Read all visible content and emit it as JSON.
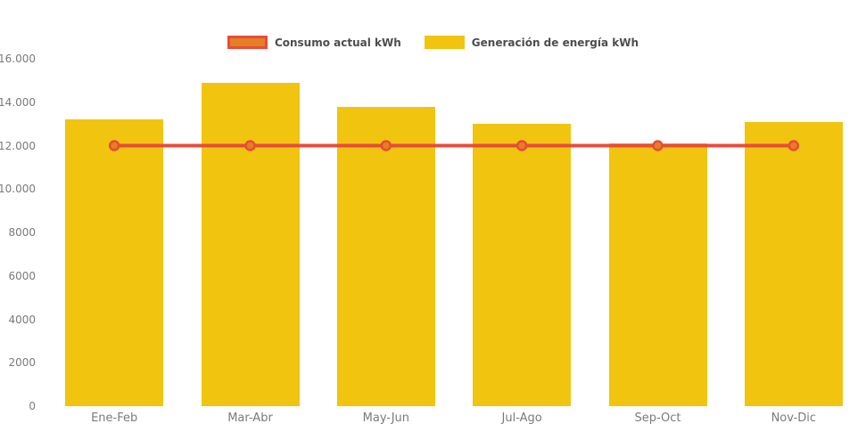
{
  "legend": {
    "items": [
      {
        "label": "Consumo actual kWh",
        "swatch_fill": "#e67e22",
        "swatch_border": "#e74c3c"
      },
      {
        "label": "Generación de energía kWh",
        "swatch_fill": "#f1c40f",
        "swatch_border": "#f1c40f"
      }
    ]
  },
  "chart_data": {
    "type": "bar",
    "categories": [
      "Ene-Feb",
      "Mar-Abr",
      "May-Jun",
      "Jul-Ago",
      "Sep-Oct",
      "Nov-Dic"
    ],
    "series": [
      {
        "name": "Consumo actual kWh",
        "type": "line",
        "values": [
          12000,
          12000,
          12000,
          12000,
          12000,
          12000
        ],
        "color": "#e74c3c",
        "marker_fill": "#e67e22",
        "marker_border": "#e74c3c"
      },
      {
        "name": "Generación de energía kWh",
        "type": "bar",
        "values": [
          13200,
          14900,
          13800,
          13000,
          12100,
          13100
        ],
        "color": "#f1c40f"
      }
    ],
    "ylim": [
      0,
      16000
    ],
    "yticks": [
      0,
      2000,
      4000,
      6000,
      8000,
      10000,
      12000,
      14000,
      16000
    ],
    "ytick_labels": [
      "0",
      "2000",
      "4000",
      "6000",
      "8000",
      "10.000",
      "12.000",
      "14.000",
      "16.000"
    ],
    "xlabel": "",
    "ylabel": "",
    "grid": false,
    "legend_position": "top-center",
    "background": "#ffffff",
    "axis_text_color": "#7a7a7a",
    "legend_text_color": "#4d4d4d"
  }
}
